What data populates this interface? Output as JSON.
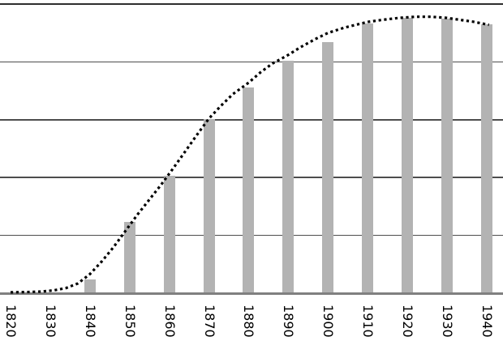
{
  "chart_data": {
    "type": "bar",
    "subtype": "bar-with-dotted-trend-line",
    "title": "",
    "xlabel": "",
    "ylabel": "",
    "categories": [
      "1820",
      "1830",
      "1840",
      "1850",
      "1860",
      "1870",
      "1880",
      "1890",
      "1900",
      "1910",
      "1920",
      "1930",
      "1940"
    ],
    "series": [
      {
        "name": "bars",
        "type": "bar",
        "values": [
          0,
          0,
          0.24,
          1.23,
          2.03,
          3.01,
          3.56,
          4.02,
          4.34,
          4.66,
          4.76,
          4.75,
          4.65
        ]
      },
      {
        "name": "trend-curve",
        "type": "line",
        "style": "dotted",
        "values_at_decades": [
          0.02,
          0.04,
          0.33,
          1.26,
          2.06,
          3.02,
          3.64,
          4.12,
          4.5,
          4.69,
          4.77,
          4.76,
          4.65
        ],
        "points": [
          [
            1820,
            0.015
          ],
          [
            1824,
            0.02
          ],
          [
            1828,
            0.03
          ],
          [
            1831,
            0.05
          ],
          [
            1834,
            0.09
          ],
          [
            1837,
            0.17
          ],
          [
            1840,
            0.33
          ],
          [
            1843,
            0.55
          ],
          [
            1846,
            0.8
          ],
          [
            1849,
            1.08
          ],
          [
            1852,
            1.36
          ],
          [
            1855,
            1.62
          ],
          [
            1858,
            1.88
          ],
          [
            1861,
            2.16
          ],
          [
            1864,
            2.45
          ],
          [
            1867,
            2.74
          ],
          [
            1870,
            3.02
          ],
          [
            1873,
            3.24
          ],
          [
            1876,
            3.44
          ],
          [
            1880,
            3.64
          ],
          [
            1883,
            3.82
          ],
          [
            1886,
            3.97
          ],
          [
            1890,
            4.12
          ],
          [
            1893,
            4.25
          ],
          [
            1897,
            4.4
          ],
          [
            1900,
            4.5
          ],
          [
            1904,
            4.59
          ],
          [
            1907,
            4.64
          ],
          [
            1910,
            4.69
          ],
          [
            1914,
            4.73
          ],
          [
            1918,
            4.76
          ],
          [
            1922,
            4.78
          ],
          [
            1926,
            4.78
          ],
          [
            1930,
            4.76
          ],
          [
            1934,
            4.72
          ],
          [
            1937,
            4.69
          ],
          [
            1940.6,
            4.64
          ]
        ]
      }
    ],
    "ylim": [
      0,
      5
    ],
    "y_gridline_step": 1,
    "grid": "horizontal",
    "y_axis_labels_visible": false,
    "x_label_rotation_deg": 90,
    "legend": "none",
    "colors": {
      "bar": "#b3b3b3",
      "curve": "#000000",
      "gridline": "#4d4d4d",
      "top_border": "#2e2e2e",
      "baseline": "#808080",
      "background": "#ffffff",
      "label_text": "#000000"
    }
  }
}
